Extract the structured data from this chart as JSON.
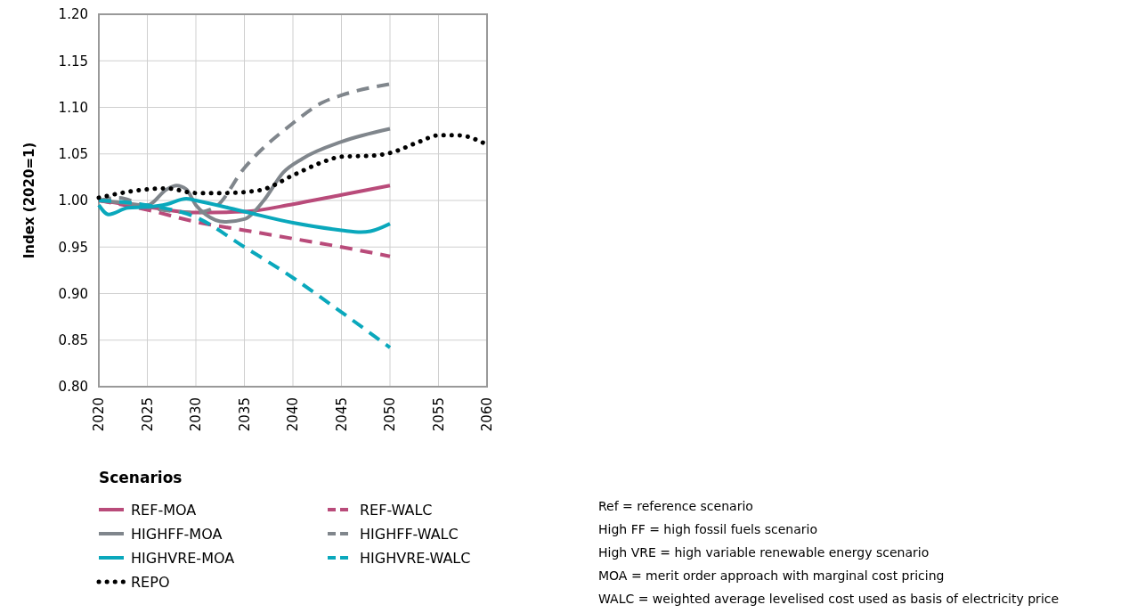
{
  "chart_data": {
    "type": "line",
    "ylabel": "Index (2020=1)",
    "legend_title": "Scenarios",
    "legend": "bottom",
    "grid": true,
    "xlim": [
      2020,
      2060
    ],
    "xticks": [
      2020,
      2025,
      2030,
      2035,
      2040,
      2045,
      2050,
      2055,
      2060
    ],
    "ylim": [
      0.8,
      1.2
    ],
    "yticks": [
      {
        "value": 0.8,
        "label": "0.80"
      },
      {
        "value": 0.85,
        "label": "0.85"
      },
      {
        "value": 0.9,
        "label": "0.90"
      },
      {
        "value": 0.95,
        "label": "0.95"
      },
      {
        "value": 1.0,
        "label": "1.00"
      },
      {
        "value": 1.05,
        "label": "1.05"
      },
      {
        "value": 1.1,
        "label": "1.10"
      },
      {
        "value": 1.15,
        "label": "1.15"
      },
      {
        "value": 1.2,
        "label": "1.20"
      }
    ],
    "series": [
      {
        "name": "REF-MOA",
        "color": "#b94b7a",
        "line_style": "solid",
        "x": [
          2020,
          2025,
          2030,
          2035,
          2040,
          2045,
          2050
        ],
        "values": [
          1.0,
          0.993,
          0.987,
          0.988,
          0.996,
          1.006,
          1.016
        ]
      },
      {
        "name": "REF-WALC",
        "color": "#b94b7a",
        "line_style": "dashed",
        "x": [
          2020,
          2025,
          2030,
          2035,
          2040,
          2045,
          2050
        ],
        "values": [
          1.0,
          0.99,
          0.977,
          0.968,
          0.959,
          0.95,
          0.94
        ]
      },
      {
        "name": "HIGHFF-MOA",
        "color": "#80868c",
        "line_style": "solid",
        "x": [
          2020,
          2022,
          2025,
          2027,
          2028,
          2029,
          2030,
          2031,
          2033,
          2035,
          2037,
          2039,
          2041,
          2045,
          2050
        ],
        "values": [
          1.0,
          0.998,
          0.995,
          1.012,
          1.016,
          1.012,
          0.995,
          0.985,
          0.977,
          0.98,
          1.0,
          1.03,
          1.045,
          1.063,
          1.077
        ]
      },
      {
        "name": "HIGHFF-WALC",
        "color": "#80868c",
        "line_style": "dashed",
        "x": [
          2020,
          2022,
          2025,
          2030,
          2032,
          2035,
          2040,
          2043,
          2045,
          2050
        ],
        "values": [
          1.0,
          1.003,
          0.993,
          0.987,
          0.993,
          1.035,
          1.083,
          1.105,
          1.113,
          1.125
        ]
      },
      {
        "name": "HIGHVRE-MOA",
        "color": "#0aa8bc",
        "line_style": "solid",
        "x": [
          2020,
          2021,
          2023,
          2025,
          2027,
          2029,
          2030,
          2035,
          2040,
          2045,
          2047,
          2048,
          2050
        ],
        "values": [
          0.995,
          0.985,
          0.992,
          0.993,
          0.996,
          1.002,
          1.0,
          0.988,
          0.976,
          0.968,
          0.966,
          0.967,
          0.975
        ]
      },
      {
        "name": "HIGHVRE-WALC",
        "color": "#0aa8bc",
        "line_style": "dashed",
        "x": [
          2020,
          2025,
          2030,
          2035,
          2040,
          2045,
          2050
        ],
        "values": [
          1.0,
          0.995,
          0.982,
          0.95,
          0.917,
          0.88,
          0.842
        ]
      },
      {
        "name": "REPO",
        "color": "#000000",
        "line_style": "dotted",
        "x": [
          2020,
          2025,
          2027,
          2030,
          2033,
          2035,
          2037,
          2040,
          2043,
          2045,
          2048,
          2050,
          2053,
          2055,
          2057,
          2060
        ],
        "values": [
          1.003,
          1.012,
          1.013,
          1.008,
          1.008,
          1.009,
          1.012,
          1.027,
          1.041,
          1.047,
          1.048,
          1.051,
          1.063,
          1.07,
          1.07,
          1.06
        ]
      }
    ],
    "annotations": [
      "Ref = reference scenario",
      "High FF = high fossil fuels scenario",
      "High VRE = high variable renewable energy scenario",
      "MOA = merit order approach with marginal cost pricing",
      "WALC = weighted average levelised cost used as basis of electricity price"
    ]
  }
}
